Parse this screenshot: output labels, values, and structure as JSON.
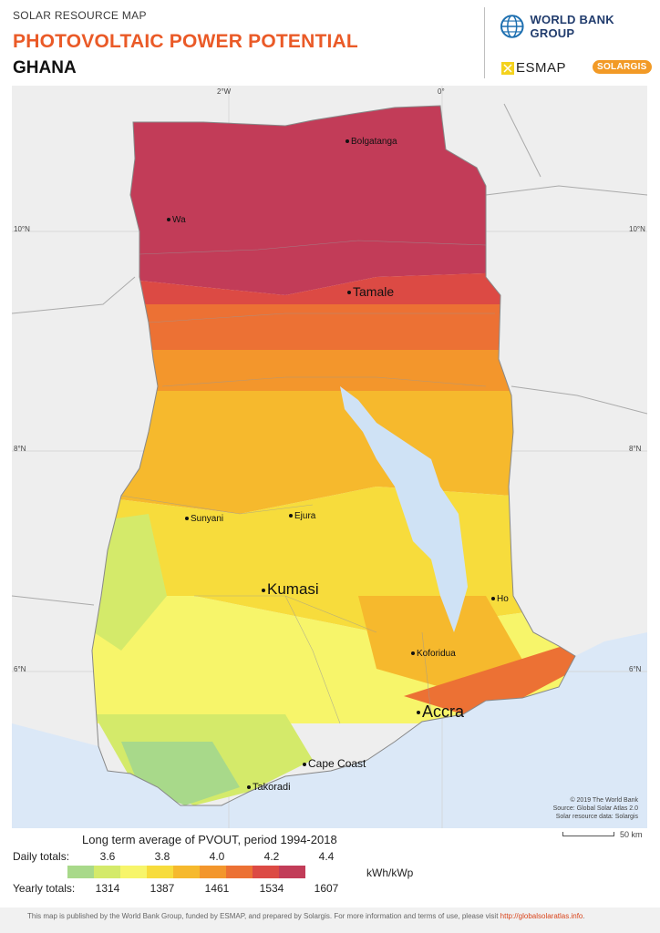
{
  "header": {
    "overline": "SOLAR RESOURCE MAP",
    "title": "PHOTOVOLTAIC POWER POTENTIAL",
    "country": "GHANA"
  },
  "logos": {
    "world_bank": "WORLD BANK GROUP",
    "esmap": "ESMAP",
    "solargis": "SOLARGIS"
  },
  "map": {
    "graticule": {
      "lon_top": [
        "2°W",
        "0°"
      ],
      "lat_left": [
        "10°N",
        "8°N",
        "6°N"
      ],
      "lat_right": [
        "10°N",
        "8°N",
        "6°N"
      ]
    },
    "cities": [
      {
        "name": "Bolgatanga"
      },
      {
        "name": "Wa"
      },
      {
        "name": "Tamale"
      },
      {
        "name": "Sunyani"
      },
      {
        "name": "Ejura"
      },
      {
        "name": "Kumasi"
      },
      {
        "name": "Ho"
      },
      {
        "name": "Koforidua"
      },
      {
        "name": "Accra"
      },
      {
        "name": "Cape Coast"
      },
      {
        "name": "Takoradi"
      }
    ],
    "credits": [
      "© 2019 The World Bank",
      "Source: Global Solar Atlas 2.0",
      "Solar resource data: Solargis"
    ],
    "scale_label": "50 km",
    "colors": {
      "sea": "#dbe8f7",
      "land_outside": "#eeeeee",
      "lake": "#cfe2f5",
      "border": "#aaaaaa"
    }
  },
  "legend": {
    "title": "Long term average of PVOUT, period 1994-2018",
    "daily_label": "Daily totals:",
    "yearly_label": "Yearly totals:",
    "daily_ticks": [
      "3.6",
      "3.8",
      "4.0",
      "4.2",
      "4.4"
    ],
    "yearly_ticks": [
      "1314",
      "1387",
      "1461",
      "1534",
      "1607"
    ],
    "unit": "kWh/kWp",
    "swatch_colors": [
      "#a8d98a",
      "#d4ea6a",
      "#f7f56a",
      "#f7dc3c",
      "#f6b92d",
      "#f3962c",
      "#ec7134",
      "#dc4a44",
      "#c23c58"
    ]
  },
  "footer": {
    "text": "This map is published by the World Bank Group, funded by ESMAP, and prepared by Solargis. For more information and terms of use, please visit ",
    "link": "http://globalsolaratlas.info",
    "suffix": "."
  }
}
